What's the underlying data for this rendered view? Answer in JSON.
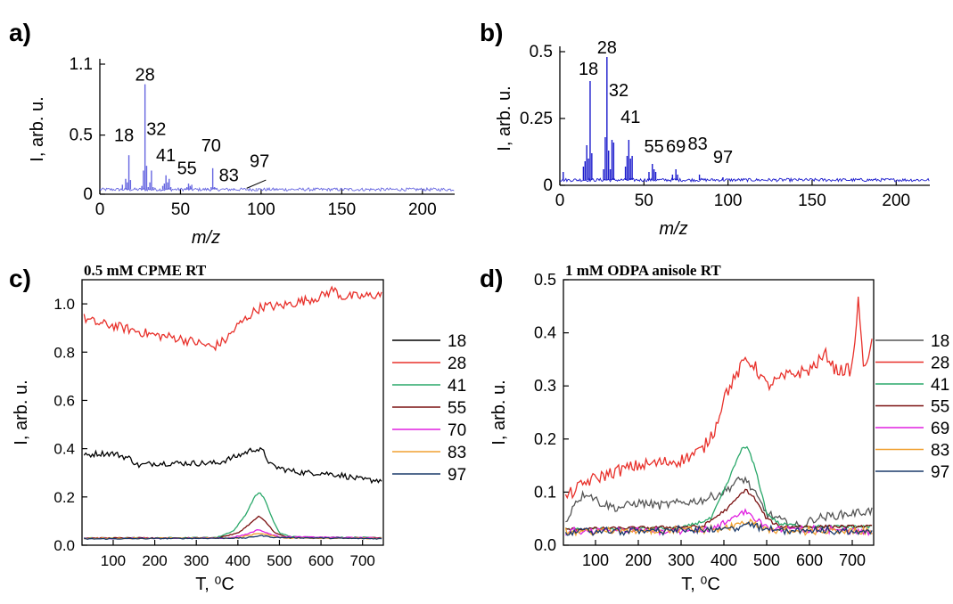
{
  "panels": {
    "a": "a)",
    "b": "b)",
    "c": "c)",
    "d": "d)"
  },
  "chart_data": [
    {
      "id": "a",
      "type": "bar",
      "title": "",
      "xlabel": "m/z",
      "ylabel": "I, arb. u.",
      "xlim": [
        0,
        220
      ],
      "ylim": [
        0,
        1.1
      ],
      "xticks": [
        0,
        50,
        100,
        150,
        200
      ],
      "yticks": [
        0,
        0.5,
        1.1
      ],
      "ytick_labels": [
        "0",
        "0.5",
        "1.1"
      ],
      "baseline": 0.04,
      "color": "#6666e0",
      "x": [
        12,
        14,
        16,
        17,
        18,
        19,
        26,
        27,
        28,
        29,
        30,
        31,
        32,
        33,
        39,
        40,
        41,
        42,
        43,
        44,
        53,
        54,
        55,
        56,
        57,
        67,
        69,
        70,
        71,
        72,
        83,
        97
      ],
      "values": [
        0.04,
        0.08,
        0.13,
        0.1,
        0.33,
        0.12,
        0.07,
        0.2,
        0.93,
        0.24,
        0.06,
        0.1,
        0.2,
        0.06,
        0.07,
        0.09,
        0.16,
        0.1,
        0.13,
        0.06,
        0.05,
        0.06,
        0.09,
        0.07,
        0.08,
        0.05,
        0.06,
        0.22,
        0.06,
        0.05,
        0.05,
        0.05
      ],
      "annotations": [
        {
          "text": "18",
          "x": 15,
          "y": 0.42
        },
        {
          "text": "28",
          "x": 28,
          "y": 0.93
        },
        {
          "text": "32",
          "x": 35,
          "y": 0.47
        },
        {
          "text": "41",
          "x": 41,
          "y": 0.25
        },
        {
          "text": "55",
          "x": 54,
          "y": 0.14
        },
        {
          "text": "70",
          "x": 69,
          "y": 0.33
        },
        {
          "text": "83",
          "x": 80,
          "y": 0.08
        },
        {
          "text": "97",
          "x": 99,
          "y": 0.2
        }
      ]
    },
    {
      "id": "b",
      "type": "bar",
      "title": "",
      "xlabel": "m/z",
      "ylabel": "I, arb. u.",
      "xlim": [
        0,
        220
      ],
      "ylim": [
        0,
        0.5
      ],
      "xticks": [
        0,
        50,
        100,
        150,
        200
      ],
      "yticks": [
        0,
        0.25,
        0.5
      ],
      "ytick_labels": [
        "0",
        "0.25",
        "0.5"
      ],
      "baseline": 0.02,
      "color": "#1a1acc",
      "x": [
        2,
        14,
        15,
        16,
        17,
        18,
        19,
        26,
        27,
        28,
        29,
        30,
        31,
        32,
        39,
        40,
        41,
        42,
        43,
        53,
        55,
        56,
        57,
        67,
        69,
        70,
        83,
        97
      ],
      "values": [
        0.05,
        0.07,
        0.09,
        0.15,
        0.1,
        0.39,
        0.12,
        0.06,
        0.18,
        0.48,
        0.13,
        0.06,
        0.17,
        0.16,
        0.07,
        0.11,
        0.17,
        0.1,
        0.11,
        0.05,
        0.08,
        0.06,
        0.05,
        0.04,
        0.06,
        0.04,
        0.04,
        0.03
      ],
      "annotations": [
        {
          "text": "18",
          "x": 17,
          "y": 0.4
        },
        {
          "text": "28",
          "x": 28,
          "y": 0.48
        },
        {
          "text": "32",
          "x": 35,
          "y": 0.32
        },
        {
          "text": "41",
          "x": 42,
          "y": 0.22
        },
        {
          "text": "55",
          "x": 56,
          "y": 0.11
        },
        {
          "text": "69",
          "x": 69,
          "y": 0.11
        },
        {
          "text": "83",
          "x": 82,
          "y": 0.12
        },
        {
          "text": "97",
          "x": 97,
          "y": 0.07
        }
      ]
    },
    {
      "id": "c",
      "type": "line",
      "title": "0.5 mM CPME RT",
      "xlabel": "T, ⁰C",
      "ylabel": "I, arb. u.",
      "xlim": [
        25,
        750
      ],
      "ylim": [
        0,
        1.1
      ],
      "xticks": [
        100,
        200,
        300,
        400,
        500,
        600,
        700
      ],
      "yticks": [
        0.0,
        0.2,
        0.4,
        0.6,
        0.8,
        1.0
      ],
      "ytick_labels": [
        "0.0",
        "0.2",
        "0.4",
        "0.6",
        "0.8",
        "1.0"
      ],
      "legend": "right",
      "series": [
        {
          "name": "18",
          "color": "#000000",
          "noise": 0.012,
          "points": [
            [
              30,
              0.37
            ],
            [
              60,
              0.38
            ],
            [
              100,
              0.38
            ],
            [
              140,
              0.36
            ],
            [
              160,
              0.33
            ],
            [
              200,
              0.34
            ],
            [
              250,
              0.34
            ],
            [
              300,
              0.34
            ],
            [
              350,
              0.34
            ],
            [
              400,
              0.37
            ],
            [
              440,
              0.4
            ],
            [
              460,
              0.39
            ],
            [
              480,
              0.33
            ],
            [
              520,
              0.31
            ],
            [
              560,
              0.3
            ],
            [
              600,
              0.3
            ],
            [
              650,
              0.29
            ],
            [
              700,
              0.27
            ],
            [
              745,
              0.27
            ]
          ]
        },
        {
          "name": "28",
          "color": "#e8302a",
          "noise": 0.02,
          "points": [
            [
              30,
              0.94
            ],
            [
              60,
              0.92
            ],
            [
              100,
              0.91
            ],
            [
              150,
              0.89
            ],
            [
              200,
              0.87
            ],
            [
              250,
              0.86
            ],
            [
              300,
              0.84
            ],
            [
              340,
              0.82
            ],
            [
              370,
              0.85
            ],
            [
              400,
              0.91
            ],
            [
              440,
              0.97
            ],
            [
              460,
              0.99
            ],
            [
              500,
              0.99
            ],
            [
              550,
              1.01
            ],
            [
              600,
              1.03
            ],
            [
              630,
              1.06
            ],
            [
              650,
              1.03
            ],
            [
              700,
              1.03
            ],
            [
              745,
              1.04
            ]
          ]
        },
        {
          "name": "41",
          "color": "#2aa86a",
          "noise": 0.002,
          "points": [
            [
              30,
              0.03
            ],
            [
              200,
              0.03
            ],
            [
              350,
              0.032
            ],
            [
              390,
              0.06
            ],
            [
              420,
              0.13
            ],
            [
              440,
              0.2
            ],
            [
              452,
              0.22
            ],
            [
              465,
              0.19
            ],
            [
              480,
              0.12
            ],
            [
              500,
              0.05
            ],
            [
              530,
              0.035
            ],
            [
              600,
              0.033
            ],
            [
              745,
              0.032
            ]
          ]
        },
        {
          "name": "55",
          "color": "#7a1010",
          "noise": 0.002,
          "points": [
            [
              30,
              0.03
            ],
            [
              350,
              0.03
            ],
            [
              400,
              0.05
            ],
            [
              430,
              0.09
            ],
            [
              450,
              0.12
            ],
            [
              465,
              0.1
            ],
            [
              490,
              0.05
            ],
            [
              520,
              0.032
            ],
            [
              745,
              0.03
            ]
          ]
        },
        {
          "name": "70",
          "color": "#e020e0",
          "noise": 0.002,
          "points": [
            [
              30,
              0.028
            ],
            [
              380,
              0.03
            ],
            [
              420,
              0.045
            ],
            [
              450,
              0.065
            ],
            [
              470,
              0.05
            ],
            [
              500,
              0.035
            ],
            [
              745,
              0.03
            ]
          ]
        },
        {
          "name": "83",
          "color": "#f0a030",
          "noise": 0.002,
          "points": [
            [
              30,
              0.028
            ],
            [
              400,
              0.03
            ],
            [
              450,
              0.05
            ],
            [
              480,
              0.04
            ],
            [
              510,
              0.03
            ],
            [
              745,
              0.028
            ]
          ]
        },
        {
          "name": "97",
          "color": "#1a3a6a",
          "noise": 0.002,
          "points": [
            [
              30,
              0.026
            ],
            [
              420,
              0.03
            ],
            [
              455,
              0.04
            ],
            [
              490,
              0.032
            ],
            [
              745,
              0.027
            ]
          ]
        }
      ]
    },
    {
      "id": "d",
      "type": "line",
      "title": "1 mM ODPA anisole RT",
      "xlabel": "T, ⁰C",
      "ylabel": "I, arb. u.",
      "xlim": [
        25,
        750
      ],
      "ylim": [
        0,
        0.5
      ],
      "xticks": [
        100,
        200,
        300,
        400,
        500,
        600,
        700
      ],
      "yticks": [
        0.0,
        0.1,
        0.2,
        0.3,
        0.4,
        0.5
      ],
      "ytick_labels": [
        "0.0",
        "0.1",
        "0.2",
        "0.3",
        "0.4",
        "0.5"
      ],
      "legend": "right",
      "series": [
        {
          "name": "18",
          "color": "#555555",
          "noise": 0.008,
          "points": [
            [
              30,
              0.04
            ],
            [
              50,
              0.08
            ],
            [
              80,
              0.1
            ],
            [
              110,
              0.08
            ],
            [
              150,
              0.07
            ],
            [
              200,
              0.08
            ],
            [
              250,
              0.075
            ],
            [
              300,
              0.08
            ],
            [
              350,
              0.085
            ],
            [
              400,
              0.1
            ],
            [
              430,
              0.12
            ],
            [
              450,
              0.125
            ],
            [
              470,
              0.1
            ],
            [
              500,
              0.06
            ],
            [
              550,
              0.04
            ],
            [
              580,
              0.035
            ],
            [
              610,
              0.05
            ],
            [
              650,
              0.055
            ],
            [
              700,
              0.06
            ],
            [
              745,
              0.065
            ]
          ]
        },
        {
          "name": "28",
          "color": "#e8302a",
          "noise": 0.012,
          "points": [
            [
              30,
              0.09
            ],
            [
              80,
              0.12
            ],
            [
              150,
              0.14
            ],
            [
              200,
              0.15
            ],
            [
              250,
              0.155
            ],
            [
              300,
              0.16
            ],
            [
              350,
              0.18
            ],
            [
              380,
              0.22
            ],
            [
              400,
              0.28
            ],
            [
              430,
              0.32
            ],
            [
              450,
              0.35
            ],
            [
              470,
              0.34
            ],
            [
              500,
              0.3
            ],
            [
              550,
              0.32
            ],
            [
              600,
              0.33
            ],
            [
              640,
              0.36
            ],
            [
              660,
              0.33
            ],
            [
              700,
              0.33
            ],
            [
              715,
              0.47
            ],
            [
              725,
              0.33
            ],
            [
              745,
              0.38
            ]
          ]
        },
        {
          "name": "41",
          "color": "#2aa86a",
          "noise": 0.003,
          "points": [
            [
              30,
              0.03
            ],
            [
              300,
              0.032
            ],
            [
              370,
              0.05
            ],
            [
              410,
              0.12
            ],
            [
              440,
              0.18
            ],
            [
              455,
              0.185
            ],
            [
              475,
              0.14
            ],
            [
              500,
              0.06
            ],
            [
              530,
              0.04
            ],
            [
              600,
              0.035
            ],
            [
              745,
              0.035
            ]
          ]
        },
        {
          "name": "55",
          "color": "#7a1010",
          "noise": 0.003,
          "points": [
            [
              30,
              0.03
            ],
            [
              350,
              0.035
            ],
            [
              410,
              0.07
            ],
            [
              450,
              0.105
            ],
            [
              470,
              0.09
            ],
            [
              500,
              0.05
            ],
            [
              530,
              0.035
            ],
            [
              745,
              0.035
            ]
          ]
        },
        {
          "name": "69",
          "color": "#e020e0",
          "noise": 0.004,
          "points": [
            [
              30,
              0.025
            ],
            [
              380,
              0.03
            ],
            [
              430,
              0.055
            ],
            [
              450,
              0.065
            ],
            [
              475,
              0.05
            ],
            [
              510,
              0.03
            ],
            [
              745,
              0.028
            ]
          ]
        },
        {
          "name": "83",
          "color": "#f0a030",
          "noise": 0.004,
          "points": [
            [
              30,
              0.025
            ],
            [
              400,
              0.03
            ],
            [
              450,
              0.045
            ],
            [
              480,
              0.035
            ],
            [
              520,
              0.028
            ],
            [
              745,
              0.025
            ]
          ]
        },
        {
          "name": "97",
          "color": "#1a3a6a",
          "noise": 0.004,
          "points": [
            [
              30,
              0.025
            ],
            [
              420,
              0.03
            ],
            [
              455,
              0.04
            ],
            [
              490,
              0.03
            ],
            [
              745,
              0.025
            ]
          ]
        }
      ]
    }
  ]
}
